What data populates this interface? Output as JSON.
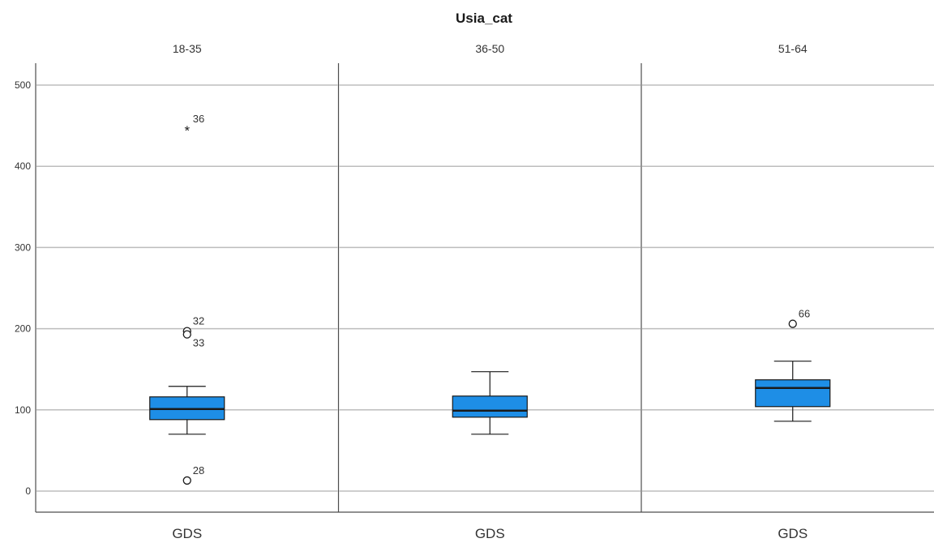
{
  "chart_data": {
    "type": "boxplot",
    "title": "Usia_cat",
    "ylim": [
      -26,
      527
    ],
    "yticks": [
      0,
      100,
      200,
      300,
      400,
      500
    ],
    "grid": true,
    "box_color": "#1e8ee6",
    "panels": [
      {
        "label": "18-35",
        "category": "GDS",
        "whisker_low": 70,
        "q1": 88,
        "median": 101,
        "q3": 116,
        "whisker_high": 129,
        "outliers": [
          {
            "value": 446,
            "marker": "star",
            "label": "36"
          },
          {
            "value": 197,
            "marker": "circle",
            "label": "32"
          },
          {
            "value": 193,
            "marker": "circle",
            "label": "33"
          },
          {
            "value": 13,
            "marker": "circle",
            "label": "28"
          }
        ]
      },
      {
        "label": "36-50",
        "category": "GDS",
        "whisker_low": 70,
        "q1": 91,
        "median": 99,
        "q3": 117,
        "whisker_high": 147,
        "outliers": []
      },
      {
        "label": "51-64",
        "category": "GDS",
        "whisker_low": 86,
        "q1": 104,
        "median": 127,
        "q3": 137,
        "whisker_high": 160,
        "outliers": [
          {
            "value": 206,
            "marker": "circle",
            "label": "66"
          }
        ]
      }
    ]
  }
}
